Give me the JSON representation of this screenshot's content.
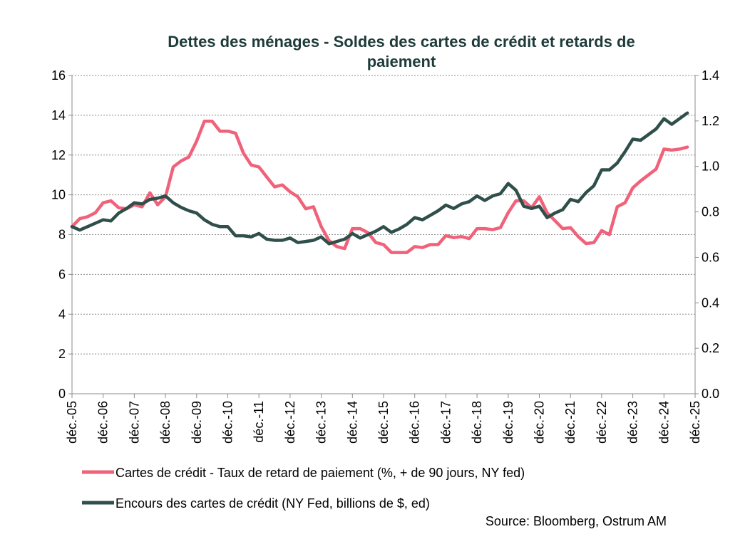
{
  "chart_data": {
    "type": "line",
    "title": "Dettes des ménages - Soldes des cartes de crédit et retards de paiement",
    "title_lines": [
      "Dettes des ménages - Soldes des cartes de crédit et retards de",
      "paiement"
    ],
    "xlabel": "",
    "x_tick_labels": [
      "déc.-05",
      "déc.-06",
      "déc.-07",
      "déc.-08",
      "déc.-09",
      "déc.-10",
      "déc.-11",
      "déc.-12",
      "déc.-13",
      "déc.-14",
      "déc.-15",
      "déc.-16",
      "déc.-17",
      "déc.-18",
      "déc.-19",
      "déc.-20",
      "déc.-21",
      "déc.-22",
      "déc.-23",
      "déc.-24",
      "déc.-25"
    ],
    "x_range": [
      2005.917,
      2025.917
    ],
    "y_left": {
      "ylim": [
        0,
        16
      ],
      "ticks": [
        0,
        2,
        4,
        6,
        8,
        10,
        12,
        14,
        16
      ],
      "tick_labels": [
        "0",
        "2",
        "4",
        "6",
        "8",
        "10",
        "12",
        "14",
        "16"
      ]
    },
    "y_right": {
      "ylim": [
        0,
        1.4
      ],
      "ticks": [
        0,
        0.2,
        0.4,
        0.6,
        0.8,
        1.0,
        1.2,
        1.4
      ],
      "tick_labels": [
        "0.0",
        "0.2",
        "0.4",
        "0.6",
        "0.8",
        "1.0",
        "1.2",
        "1.4"
      ]
    },
    "grid": true,
    "series": [
      {
        "name": "Cartes de crédit - Taux de retard de paiement (%, + de 90 jours, NY fed)",
        "axis": "left",
        "color": "#f0627a",
        "x": [
          2005.917,
          2006.167,
          2006.417,
          2006.667,
          2006.917,
          2007.167,
          2007.417,
          2007.667,
          2007.917,
          2008.167,
          2008.417,
          2008.667,
          2008.917,
          2009.167,
          2009.417,
          2009.667,
          2009.917,
          2010.167,
          2010.417,
          2010.667,
          2010.917,
          2011.167,
          2011.417,
          2011.667,
          2011.917,
          2012.167,
          2012.417,
          2012.667,
          2012.917,
          2013.167,
          2013.417,
          2013.667,
          2013.917,
          2014.167,
          2014.417,
          2014.667,
          2014.917,
          2015.167,
          2015.417,
          2015.667,
          2015.917,
          2016.167,
          2016.417,
          2016.667,
          2016.917,
          2017.167,
          2017.417,
          2017.667,
          2017.917,
          2018.167,
          2018.417,
          2018.667,
          2018.917,
          2019.167,
          2019.417,
          2019.667,
          2019.917,
          2020.167,
          2020.417,
          2020.667,
          2020.917,
          2021.167,
          2021.417,
          2021.667,
          2021.917,
          2022.167,
          2022.417,
          2022.667,
          2022.917,
          2023.167,
          2023.417,
          2023.667,
          2023.917,
          2024.167,
          2024.417,
          2024.667,
          2024.917,
          2025.167,
          2025.417,
          2025.667
        ],
        "values": [
          8.4,
          8.8,
          8.9,
          9.1,
          9.6,
          9.7,
          9.35,
          9.3,
          9.5,
          9.4,
          10.1,
          9.5,
          9.9,
          11.4,
          11.7,
          11.9,
          12.7,
          13.7,
          13.7,
          13.2,
          13.2,
          13.1,
          12.1,
          11.5,
          11.4,
          10.9,
          10.4,
          10.5,
          10.15,
          9.9,
          9.3,
          9.4,
          8.4,
          7.7,
          7.4,
          7.3,
          8.3,
          8.3,
          8.1,
          7.6,
          7.5,
          7.1,
          7.1,
          7.1,
          7.4,
          7.35,
          7.5,
          7.5,
          7.95,
          7.85,
          7.9,
          7.8,
          8.3,
          8.3,
          8.25,
          8.35,
          9.1,
          9.7,
          9.7,
          9.35,
          9.9,
          9.1,
          8.7,
          8.3,
          8.35,
          7.9,
          7.55,
          7.6,
          8.2,
          8.0,
          9.4,
          9.6,
          10.35,
          10.7,
          11.0,
          11.3,
          12.3,
          12.25,
          12.3,
          12.4
        ]
      },
      {
        "name": "Encours des cartes de crédit (NY Fed, billions de $, ed)",
        "axis": "right",
        "color": "#2f4f4b",
        "x": [
          2005.917,
          2006.167,
          2006.417,
          2006.667,
          2006.917,
          2007.167,
          2007.417,
          2007.667,
          2007.917,
          2008.167,
          2008.417,
          2008.667,
          2008.917,
          2009.167,
          2009.417,
          2009.667,
          2009.917,
          2010.167,
          2010.417,
          2010.667,
          2010.917,
          2011.167,
          2011.417,
          2011.667,
          2011.917,
          2012.167,
          2012.417,
          2012.667,
          2012.917,
          2013.167,
          2013.417,
          2013.667,
          2013.917,
          2014.167,
          2014.417,
          2014.667,
          2014.917,
          2015.167,
          2015.417,
          2015.667,
          2015.917,
          2016.167,
          2016.417,
          2016.667,
          2016.917,
          2017.167,
          2017.417,
          2017.667,
          2017.917,
          2018.167,
          2018.417,
          2018.667,
          2018.917,
          2019.167,
          2019.417,
          2019.667,
          2019.917,
          2020.167,
          2020.417,
          2020.667,
          2020.917,
          2021.167,
          2021.417,
          2021.667,
          2021.917,
          2022.167,
          2022.417,
          2022.667,
          2022.917,
          2023.167,
          2023.417,
          2023.667,
          2023.917,
          2024.167,
          2024.417,
          2024.667,
          2024.917,
          2025.167,
          2025.417,
          2025.667
        ],
        "values": [
          0.735,
          0.72,
          0.735,
          0.75,
          0.765,
          0.76,
          0.795,
          0.815,
          0.84,
          0.835,
          0.855,
          0.86,
          0.87,
          0.84,
          0.82,
          0.805,
          0.795,
          0.765,
          0.745,
          0.735,
          0.735,
          0.695,
          0.695,
          0.69,
          0.705,
          0.68,
          0.675,
          0.675,
          0.685,
          0.665,
          0.67,
          0.675,
          0.69,
          0.66,
          0.67,
          0.68,
          0.705,
          0.685,
          0.7,
          0.715,
          0.735,
          0.71,
          0.725,
          0.745,
          0.775,
          0.765,
          0.785,
          0.805,
          0.83,
          0.815,
          0.835,
          0.845,
          0.87,
          0.85,
          0.87,
          0.88,
          0.925,
          0.895,
          0.825,
          0.815,
          0.825,
          0.775,
          0.795,
          0.81,
          0.855,
          0.845,
          0.885,
          0.915,
          0.985,
          0.985,
          1.015,
          1.065,
          1.12,
          1.115,
          1.14,
          1.165,
          1.21,
          1.185,
          1.21,
          1.235
        ]
      }
    ],
    "legend_position": "bottom-left",
    "source": "Source: Bloomberg, Ostrum AM"
  }
}
